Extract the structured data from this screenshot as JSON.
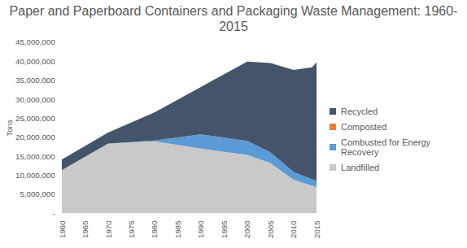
{
  "chart_data": {
    "type": "area",
    "title": "Paper and Paperboard Containers and Packaging Waste Management: 1960-2015",
    "y_label": "Tons",
    "stacked": true,
    "legend": "right",
    "grid": false,
    "x": [
      1960,
      1970,
      1980,
      1990,
      2000,
      2005,
      2010,
      2014,
      2015
    ],
    "xlim": [
      1960,
      2015
    ],
    "xticks": [
      1960,
      1965,
      1970,
      1975,
      1980,
      1985,
      1990,
      1995,
      2000,
      2005,
      2010,
      2015
    ],
    "ylim": [
      0,
      45000000
    ],
    "yticks": [
      {
        "value": 0,
        "label": "-"
      },
      {
        "value": 5000000,
        "label": "5,000,000"
      },
      {
        "value": 10000000,
        "label": "10,000,000"
      },
      {
        "value": 15000000,
        "label": "15,000,000"
      },
      {
        "value": 20000000,
        "label": "20,000,000"
      },
      {
        "value": 25000000,
        "label": "25,000,000"
      },
      {
        "value": 30000000,
        "label": "30,000,000"
      },
      {
        "value": 35000000,
        "label": "35,000,000"
      },
      {
        "value": 40000000,
        "label": "40,000,000"
      },
      {
        "value": 45000000,
        "label": "45,000,000"
      }
    ],
    "series": [
      {
        "name": "Landfilled",
        "color": "#c9c9c9",
        "values": [
          11300000,
          18300000,
          18900000,
          17000000,
          15300000,
          13200000,
          8800000,
          7200000,
          6800000
        ]
      },
      {
        "name": "Combusted for Energy Recovery",
        "color": "#5b9bd5",
        "values": [
          0,
          0,
          200000,
          3700000,
          3700000,
          2800000,
          2000000,
          1700000,
          1700000
        ]
      },
      {
        "name": "Composted",
        "color": "#ed7d31",
        "values": [
          0,
          0,
          0,
          0,
          0,
          0,
          0,
          0,
          0
        ]
      },
      {
        "name": "Recycled",
        "color": "#44546a",
        "values": [
          2800000,
          2900000,
          7400000,
          12500000,
          20900000,
          23500000,
          26900000,
          29500000,
          31300000
        ]
      }
    ]
  }
}
